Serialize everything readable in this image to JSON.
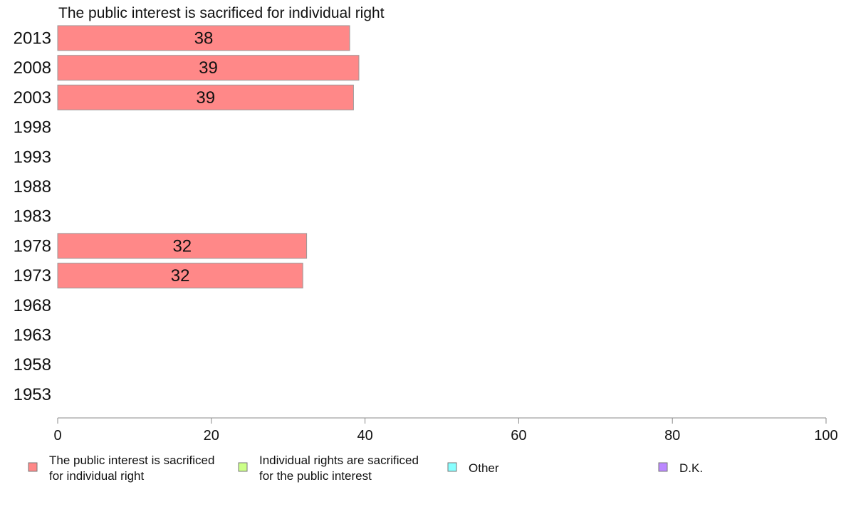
{
  "chart_data": {
    "type": "bar",
    "orientation": "horizontal",
    "title": "The public interest is sacrificed for individual right",
    "categories": [
      "2013",
      "2008",
      "2003",
      "1998",
      "1993",
      "1988",
      "1983",
      "1978",
      "1973",
      "1968",
      "1963",
      "1958",
      "1953"
    ],
    "series": [
      {
        "name": "The public interest is sacrificed for individual right",
        "color": "#ff8888",
        "values": [
          38,
          39.2,
          38.5,
          null,
          null,
          null,
          null,
          32.4,
          31.9,
          null,
          null,
          null,
          null
        ],
        "labels": [
          "38",
          "39",
          "39",
          null,
          null,
          null,
          null,
          "32",
          "32",
          null,
          null,
          null,
          null
        ]
      }
    ],
    "xlim": [
      0,
      100
    ],
    "xticks": [
      "0",
      "20",
      "40",
      "60",
      "80",
      "100"
    ],
    "grid": false,
    "legend_position": "bottom",
    "legend": [
      {
        "lines": [
          "The public interest is sacrificed",
          "for individual right"
        ],
        "color": "#ff8888"
      },
      {
        "lines": [
          "Individual rights are sacrificed",
          "for the public interest"
        ],
        "color": "#ccff88"
      },
      {
        "lines": [
          "Other"
        ],
        "color": "#88ffff"
      },
      {
        "lines": [
          "D.K."
        ],
        "color": "#bb88ff"
      }
    ]
  }
}
